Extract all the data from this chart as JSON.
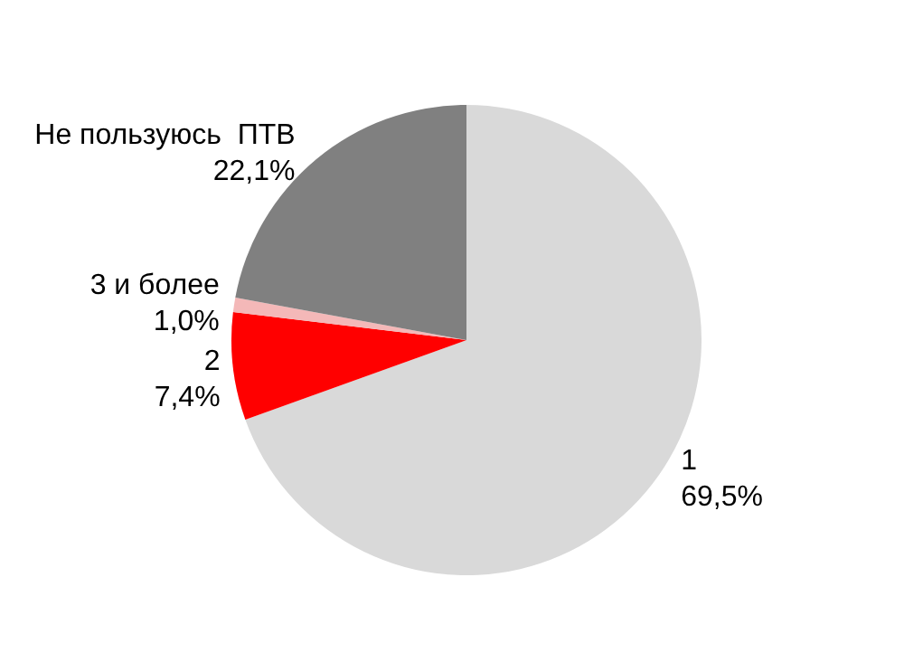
{
  "chart_data": {
    "type": "pie",
    "categories": [
      "1",
      "2",
      "3 и более",
      "Не пользуюсь  ПТВ"
    ],
    "values": [
      69.5,
      7.4,
      1.0,
      22.1
    ],
    "value_labels": [
      "69,5%",
      "7,4%",
      "1,0%",
      "22,1%"
    ],
    "colors": [
      "#d9d9d9",
      "#ff0000",
      "#f4b8b8",
      "#808080"
    ],
    "legend": false
  }
}
